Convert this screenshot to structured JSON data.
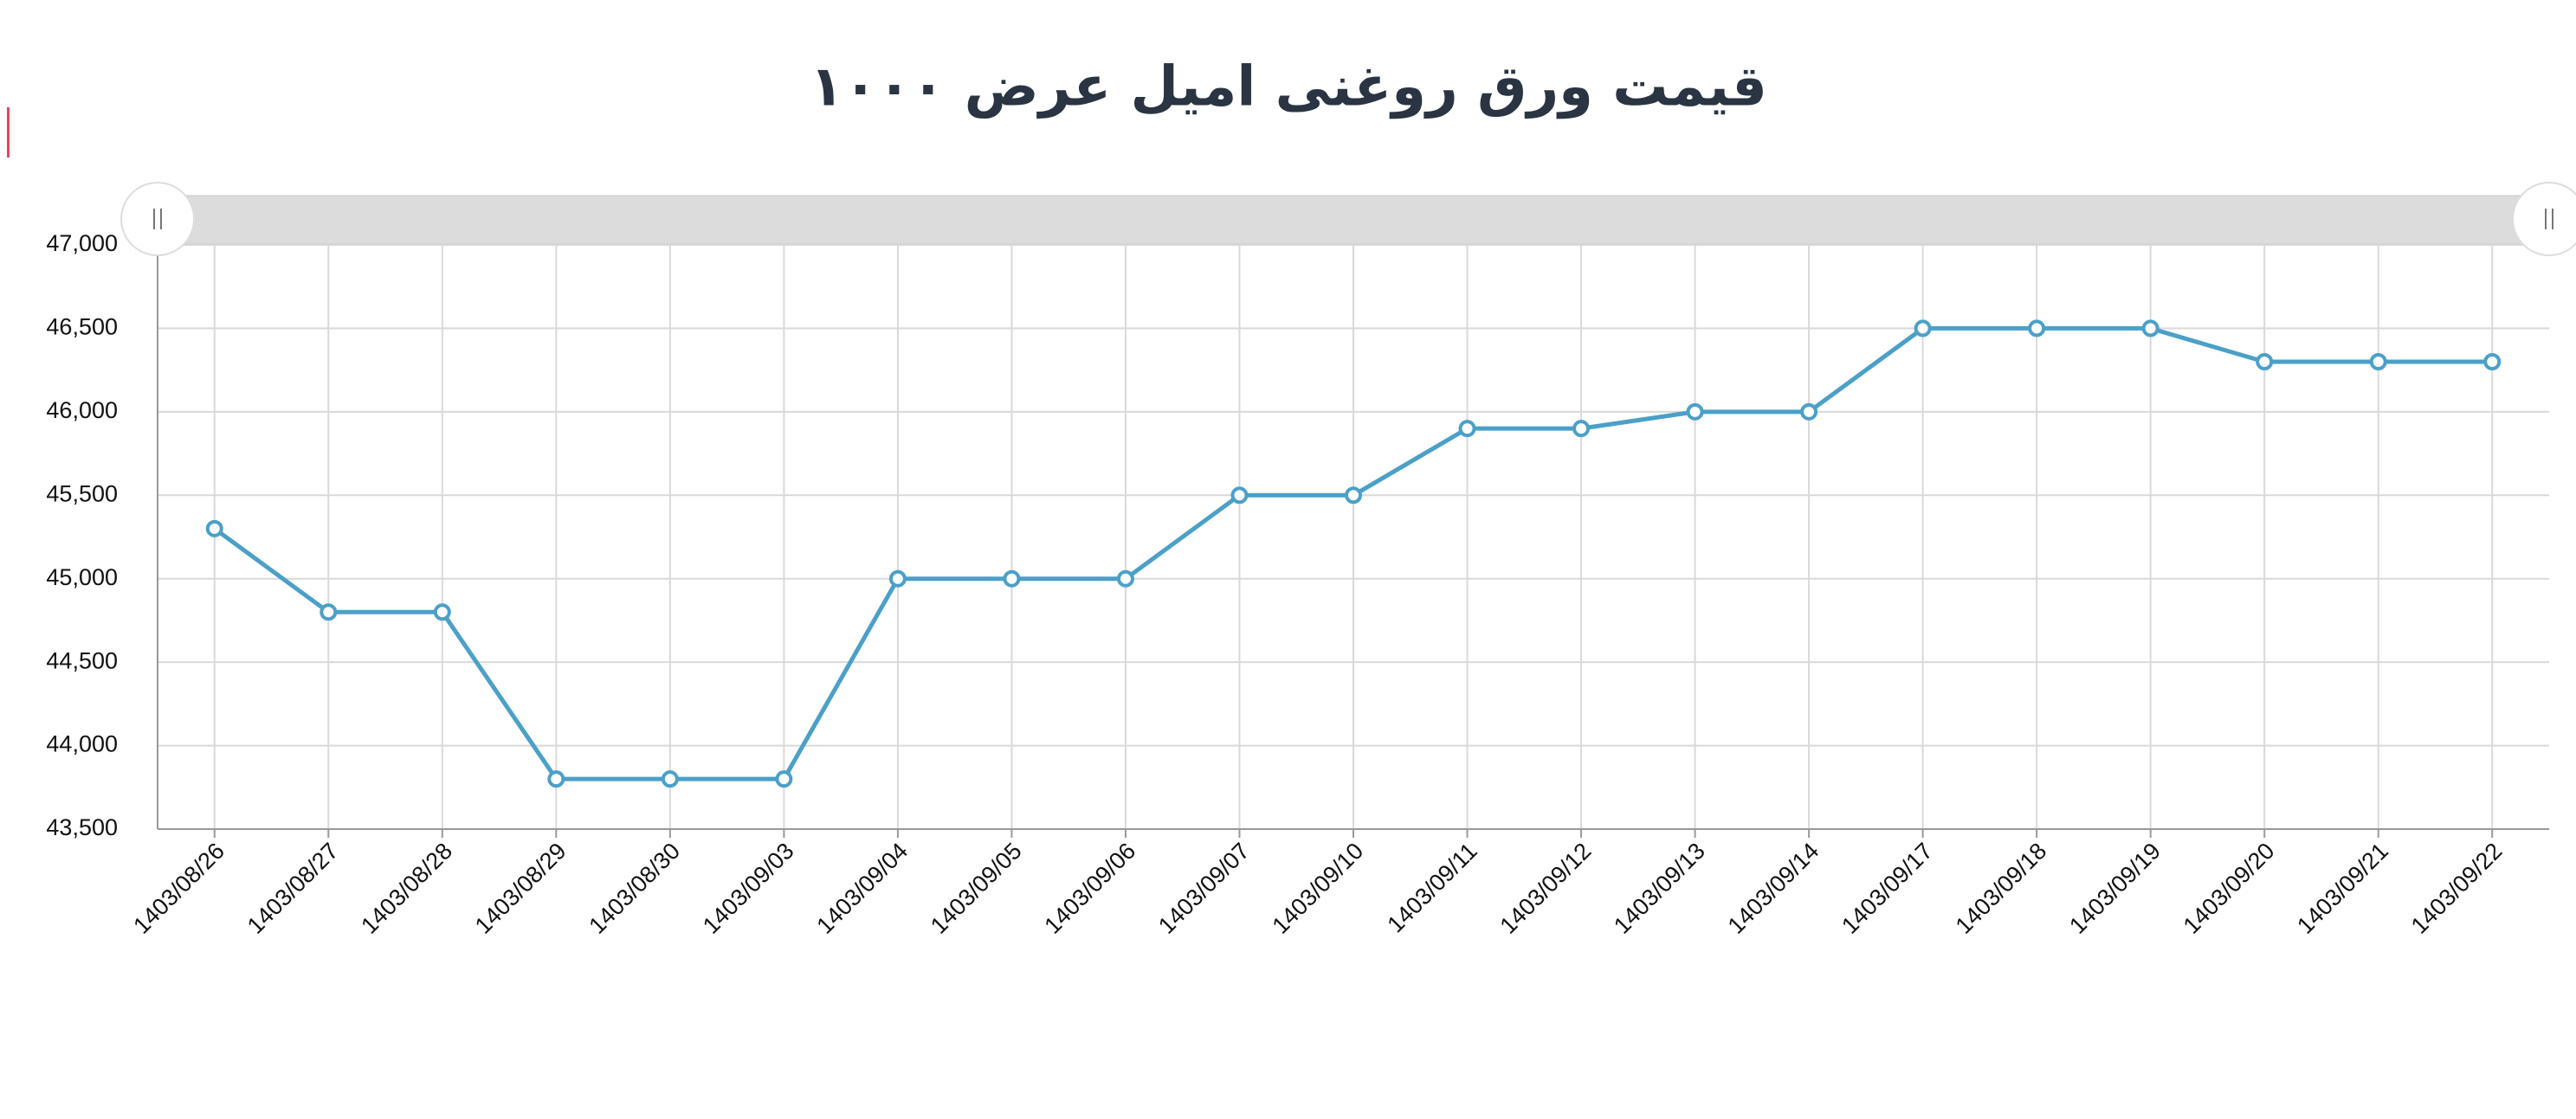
{
  "chart_data": {
    "type": "line",
    "title": "قیمت ورق روغنی امیل عرض ۱۰۰۰",
    "categories": [
      "1403/08/26",
      "1403/08/27",
      "1403/08/28",
      "1403/08/29",
      "1403/08/30",
      "1403/09/03",
      "1403/09/04",
      "1403/09/05",
      "1403/09/06",
      "1403/09/07",
      "1403/09/10",
      "1403/09/11",
      "1403/09/12",
      "1403/09/13",
      "1403/09/14",
      "1403/09/17",
      "1403/09/18",
      "1403/09/19",
      "1403/09/20",
      "1403/09/21",
      "1403/09/22"
    ],
    "series": [
      {
        "color": "#4ba0c8",
        "values": [
          45300,
          44800,
          44800,
          43800,
          43800,
          43800,
          45000,
          45000,
          45000,
          45500,
          45500,
          45900,
          45900,
          46000,
          46000,
          46500,
          46500,
          46500,
          46300,
          46300,
          46300
        ]
      }
    ],
    "ylim": [
      43500,
      47000
    ],
    "yticks": [
      {
        "value": 43500,
        "label": "43,500"
      },
      {
        "value": 44000,
        "label": "44,000"
      },
      {
        "value": 44500,
        "label": "44,500"
      },
      {
        "value": 45000,
        "label": "45,000"
      },
      {
        "value": 45500,
        "label": "45,500"
      },
      {
        "value": 46000,
        "label": "46,000"
      },
      {
        "value": 46500,
        "label": "46,500"
      },
      {
        "value": 47000,
        "label": "47,000"
      }
    ],
    "grid": true
  }
}
